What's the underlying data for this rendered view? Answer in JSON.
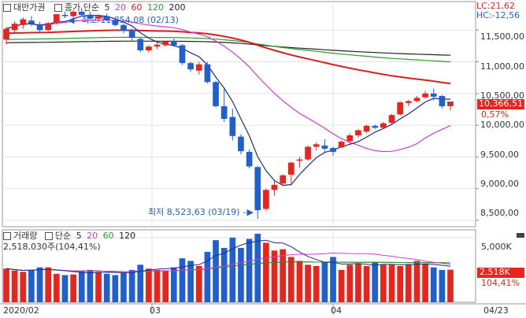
{
  "header": {
    "title": "대만가권",
    "ma_caption": "종가 단순",
    "ma_periods": [
      "5",
      "20",
      "60",
      "120",
      "200"
    ],
    "ma_colors": [
      "#1f2a8c",
      "#d23bd2",
      "#d42020",
      "#2f9a2f",
      "#222222"
    ]
  },
  "corner": {
    "lc": "LC:21,62",
    "hc": "HC:-12,56"
  },
  "price_panel": {
    "high_marker": "최고 11,854,08 (02/13)",
    "low_marker": "최저 8,523,63 (03/19)",
    "last_price_label": "10,366,51",
    "change_label": "0,57%",
    "y_ticks": [
      "11,500,00",
      "11,000,00",
      "10,500,00",
      "10,000,00",
      "9,500,00",
      "9,000,00",
      "8,500,00"
    ]
  },
  "volume_panel": {
    "title": "거래량",
    "ma_caption": "단순",
    "ma_periods": [
      "5",
      "20",
      "60",
      "120"
    ],
    "ma_colors": [
      "#1f2a8c",
      "#d23bd2",
      "#2f9a2f",
      "#222222"
    ],
    "last_volume": "2,518,030주(104,41%)",
    "y_tick": "5,000K",
    "last_label": "2,518K",
    "last_pct": "104,41%"
  },
  "x_axis": {
    "labels": [
      "2020/02",
      "03",
      "04",
      "04/23"
    ]
  },
  "colors": {
    "up": "#e8241c",
    "down": "#1f5fd0",
    "price_tag_bg": "#e8241c"
  },
  "chart_data": [
    {
      "type": "candlestick",
      "title": "대만가권",
      "ylim": [
        8400,
        11900
      ],
      "x": [
        "2020/02",
        "03",
        "04",
        "04/23"
      ],
      "ohlc": [
        [
          11350,
          11550,
          11270,
          11520
        ],
        [
          11500,
          11640,
          11440,
          11600
        ],
        [
          11580,
          11700,
          11520,
          11670
        ],
        [
          11650,
          11720,
          11560,
          11600
        ],
        [
          11580,
          11630,
          11460,
          11500
        ],
        [
          11500,
          11630,
          11480,
          11610
        ],
        [
          11620,
          11760,
          11590,
          11750
        ],
        [
          11740,
          11790,
          11690,
          11720
        ],
        [
          11720,
          11810,
          11700,
          11790
        ],
        [
          11790,
          11854,
          11720,
          11740
        ],
        [
          11740,
          11790,
          11660,
          11680
        ],
        [
          11680,
          11750,
          11620,
          11720
        ],
        [
          11720,
          11760,
          11640,
          11660
        ],
        [
          11660,
          11690,
          11560,
          11580
        ],
        [
          11580,
          11600,
          11450,
          11490
        ],
        [
          11500,
          11520,
          11340,
          11380
        ],
        [
          11360,
          11380,
          11150,
          11180
        ],
        [
          11180,
          11260,
          11140,
          11240
        ],
        [
          11240,
          11300,
          11200,
          11270
        ],
        [
          11260,
          11330,
          11240,
          11320
        ],
        [
          11330,
          11370,
          11240,
          11260
        ],
        [
          11260,
          11280,
          10950,
          10980
        ],
        [
          10980,
          11000,
          10840,
          10880
        ],
        [
          10860,
          11000,
          10800,
          10960
        ],
        [
          10960,
          11000,
          10660,
          10680
        ],
        [
          10680,
          10700,
          10280,
          10300
        ],
        [
          10300,
          10600,
          10050,
          10100
        ],
        [
          10130,
          10260,
          9760,
          9830
        ],
        [
          9820,
          9860,
          9540,
          9590
        ],
        [
          9580,
          9620,
          9320,
          9350
        ],
        [
          9340,
          9360,
          8523,
          8660
        ],
        [
          8680,
          9000,
          8650,
          8980
        ],
        [
          8980,
          9120,
          8890,
          9060
        ],
        [
          9080,
          9230,
          9050,
          9210
        ],
        [
          9220,
          9420,
          9080,
          9410
        ],
        [
          9440,
          9500,
          9330,
          9460
        ],
        [
          9460,
          9680,
          9440,
          9660
        ],
        [
          9660,
          9730,
          9600,
          9700
        ],
        [
          9680,
          9780,
          9580,
          9630
        ],
        [
          9640,
          9660,
          9520,
          9580
        ],
        [
          9650,
          9760,
          9640,
          9740
        ],
        [
          9750,
          9870,
          9700,
          9840
        ],
        [
          9840,
          9940,
          9800,
          9920
        ],
        [
          9900,
          10010,
          9870,
          9990
        ],
        [
          9990,
          10010,
          9940,
          9960
        ],
        [
          9960,
          10050,
          9940,
          10030
        ],
        [
          10040,
          10180,
          10020,
          10160
        ],
        [
          10170,
          10380,
          10150,
          10360
        ],
        [
          10350,
          10400,
          10300,
          10380
        ],
        [
          10380,
          10460,
          10360,
          10430
        ],
        [
          10440,
          10540,
          10420,
          10500
        ],
        [
          10500,
          10580,
          10390,
          10450
        ],
        [
          10460,
          10480,
          10260,
          10300
        ],
        [
          10300,
          10370,
          10230,
          10366
        ]
      ]
    },
    {
      "type": "bar",
      "title": "거래량",
      "ylim": [
        0,
        5600
      ],
      "values": [
        2600,
        2450,
        2350,
        2500,
        2700,
        2700,
        2200,
        2100,
        2150,
        2400,
        2500,
        2350,
        2200,
        2100,
        2300,
        2500,
        2900,
        2600,
        2500,
        2450,
        2700,
        3400,
        3200,
        2800,
        3900,
        4800,
        4200,
        5000,
        4200,
        4900,
        5300,
        4600,
        4000,
        4100,
        3500,
        3200,
        2900,
        2800,
        3100,
        3500,
        2500,
        2900,
        3000,
        2800,
        3100,
        2900,
        2900,
        2800,
        2900,
        3200,
        3000,
        2700,
        2500,
        2518
      ]
    }
  ]
}
